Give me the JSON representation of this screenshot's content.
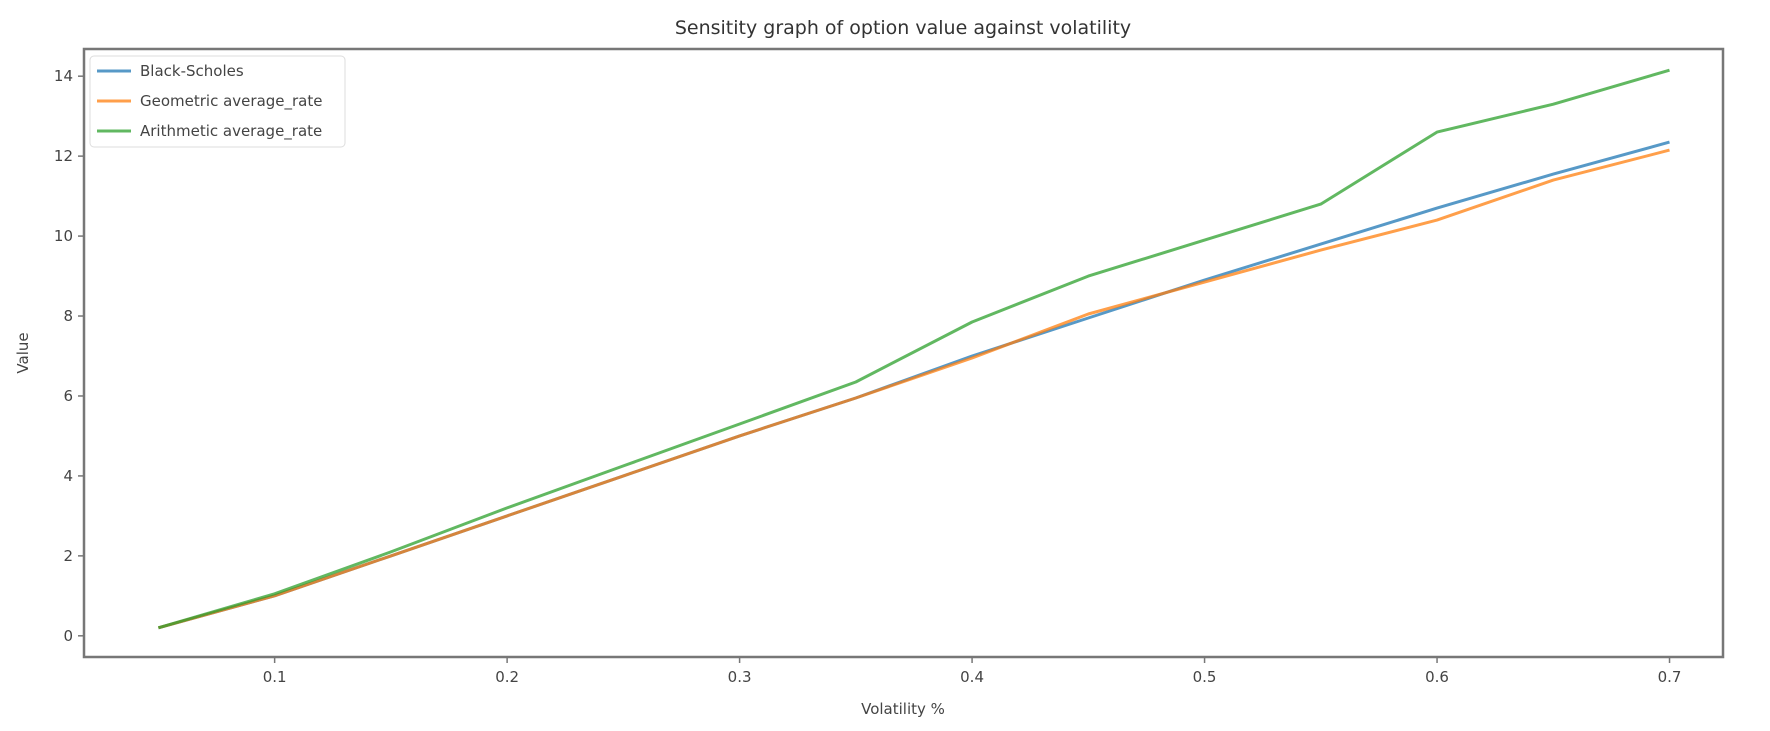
{
  "chart_data": {
    "type": "line",
    "title": "Sensitity graph of option value against volatility",
    "xlabel": "Volatility %",
    "ylabel": "Value",
    "xlim": [
      0.018,
      0.723
    ],
    "ylim": [
      -0.53,
      14.68
    ],
    "xticks": [
      0.1,
      0.2,
      0.3,
      0.4,
      0.5,
      0.6,
      0.7
    ],
    "xtick_labels": [
      "0.1",
      "0.2",
      "0.3",
      "0.4",
      "0.5",
      "0.6",
      "0.7"
    ],
    "yticks": [
      0,
      2,
      4,
      6,
      8,
      10,
      12,
      14
    ],
    "ytick_labels": [
      "0",
      "2",
      "4",
      "6",
      "8",
      "10",
      "12",
      "14"
    ],
    "grid": false,
    "legend_position": "top-left",
    "x": [
      0.05,
      0.1,
      0.15,
      0.2,
      0.25,
      0.3,
      0.35,
      0.4,
      0.45,
      0.5,
      0.55,
      0.6,
      0.65,
      0.7
    ],
    "series": [
      {
        "name": "Black-Scholes",
        "color": "#1f77b4",
        "values": [
          0.2,
          1.0,
          2.0,
          3.0,
          4.0,
          5.0,
          5.95,
          7.0,
          7.95,
          8.9,
          9.8,
          10.7,
          11.55,
          12.35
        ]
      },
      {
        "name": "Geometric average_rate",
        "color": "#ff7f0e",
        "values": [
          0.2,
          1.0,
          2.0,
          3.0,
          4.0,
          5.0,
          5.95,
          6.95,
          8.05,
          8.85,
          9.65,
          10.4,
          11.4,
          12.15
        ]
      },
      {
        "name": "Arithmetic average_rate",
        "color": "#2ca02c",
        "values": [
          0.2,
          1.05,
          2.1,
          3.2,
          4.25,
          5.3,
          6.35,
          7.85,
          9.0,
          9.9,
          10.8,
          12.6,
          13.3,
          14.15
        ]
      }
    ]
  }
}
